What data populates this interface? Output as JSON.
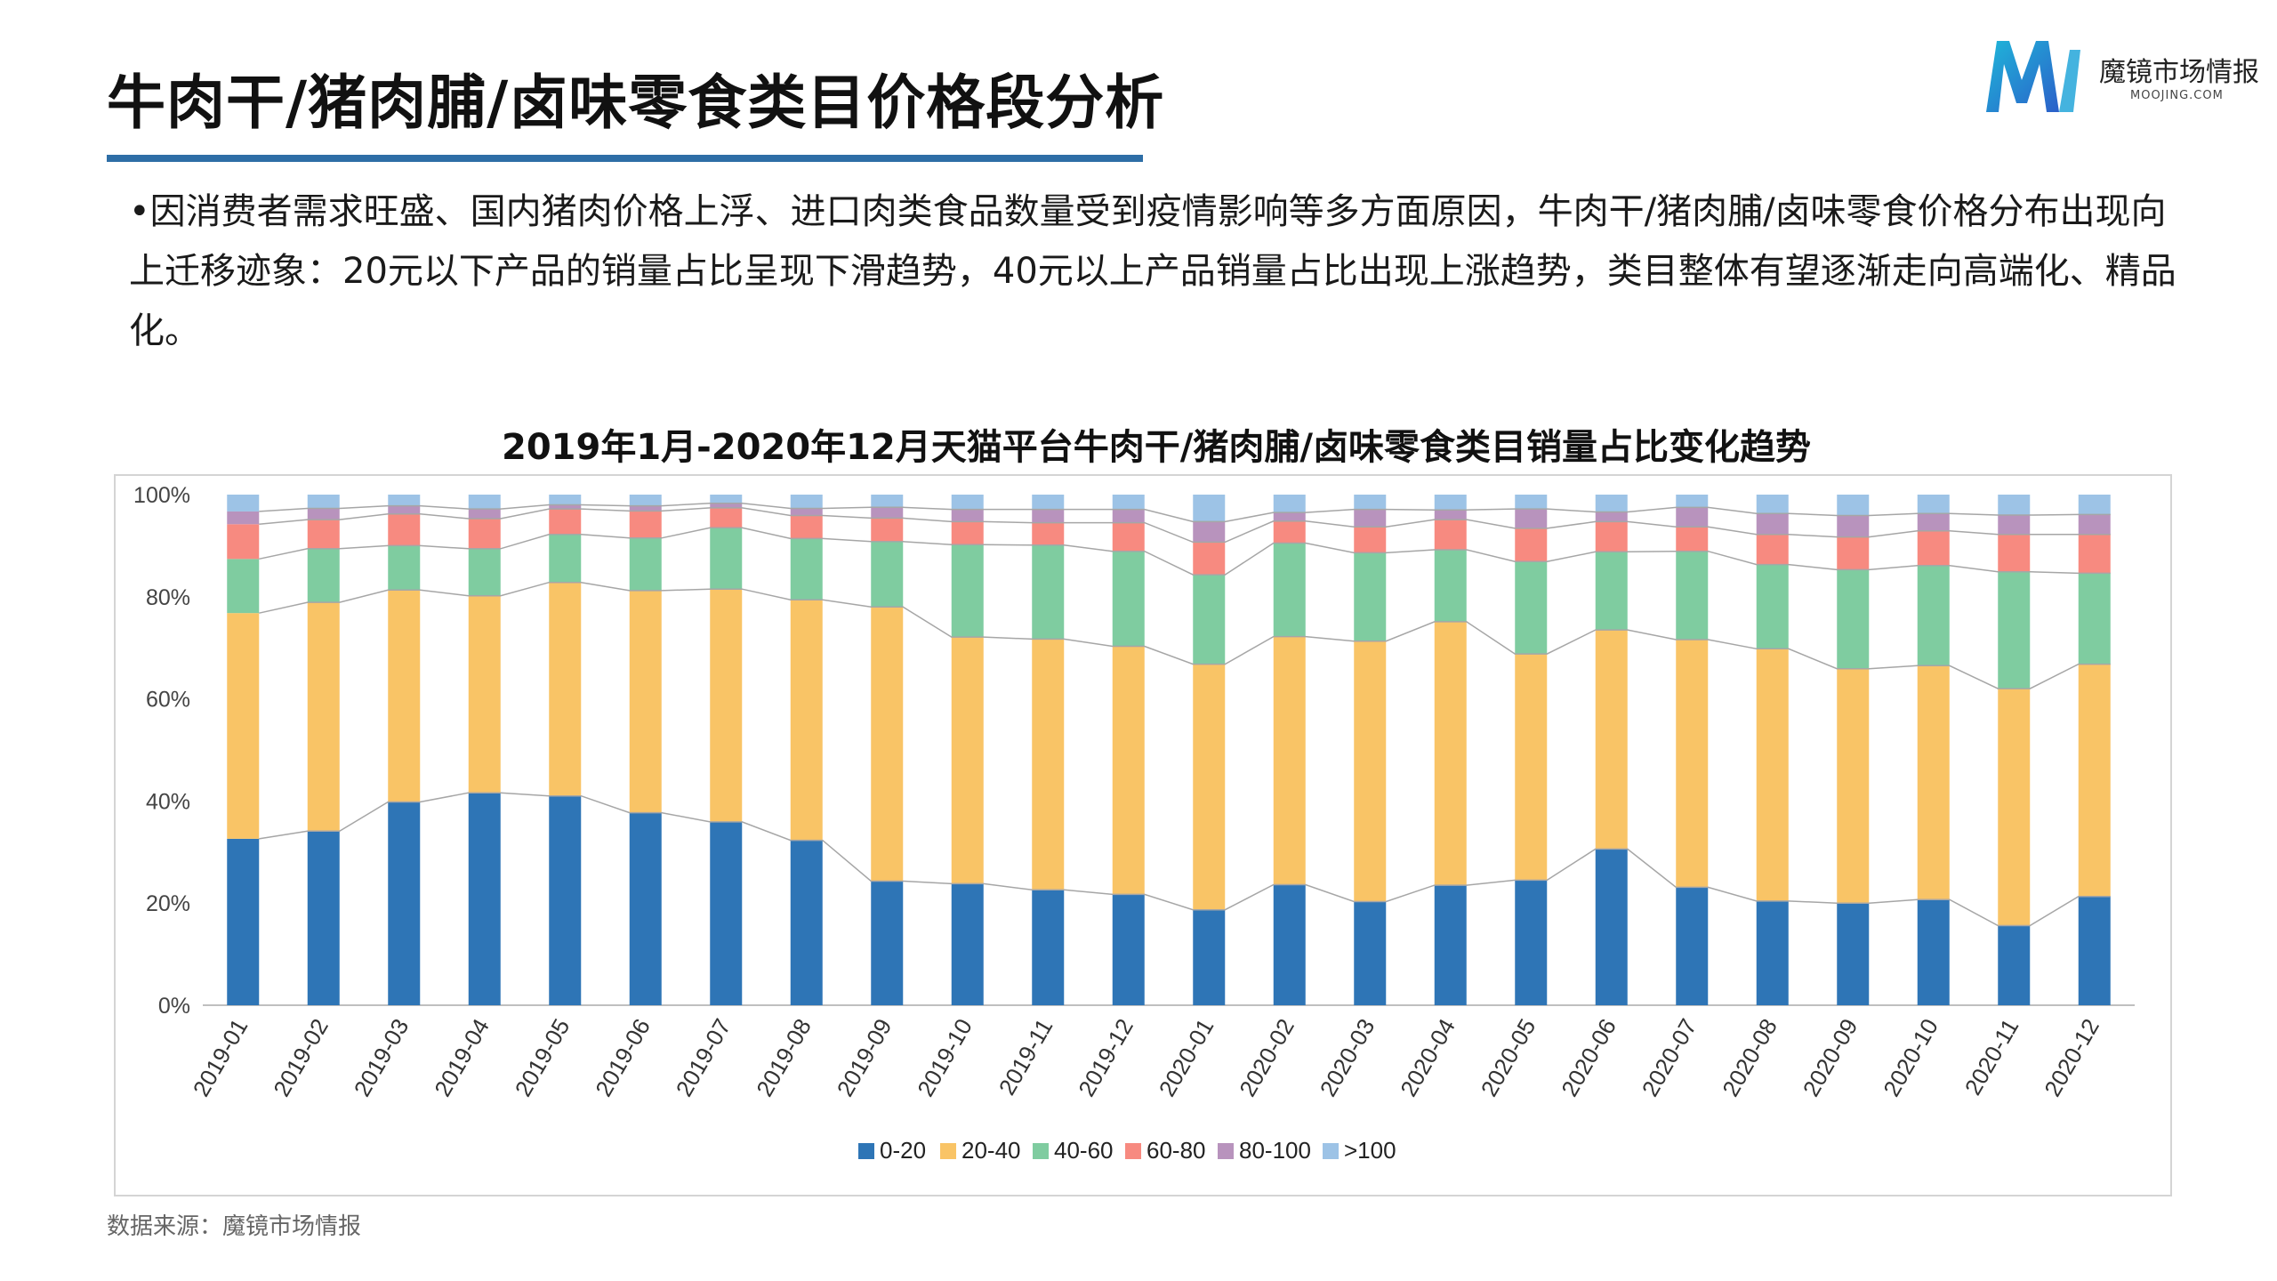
{
  "header": {
    "title": "牛肉干/猪肉脯/卤味零食类目价格段分析",
    "logo_name": "魔镜市场情报",
    "logo_domain": "MOOJING.COM"
  },
  "description": "•因消费者需求旺盛、国内猪肉价格上浮、进口肉类食品数量受到疫情影响等多方面原因，牛肉干/猪肉脯/卤味零食价格分布出现向上迁移迹象：20元以下产品的销量占比呈现下滑趋势，40元以上产品销量占比出现上涨趋势，类目整体有望逐渐走向高端化、精品化。",
  "source": "数据来源：魔镜市场情报",
  "colors": {
    "brand_blue": "#2e6ea6",
    "s_0_20": "#2e75b6",
    "s_20_40": "#f9c466",
    "s_40_60": "#7fcca0",
    "s_60_80": "#f78a80",
    "s_80_100": "#b893bd",
    "s_100_plus": "#9dc3e6"
  },
  "chart_data": {
    "type": "bar",
    "stacked": true,
    "percent_stacked": true,
    "title": "2019年1月-2020年12月天猫平台牛肉干/猪肉脯/卤味零食类目销量占比变化趋势",
    "xlabel": "",
    "ylabel": "",
    "ylim": [
      0,
      100
    ],
    "yticks": [
      "0%",
      "20%",
      "40%",
      "60%",
      "80%",
      "100%"
    ],
    "legend_position": "bottom",
    "grid": false,
    "series_lines": true,
    "categories": [
      "2019-01",
      "2019-02",
      "2019-03",
      "2019-04",
      "2019-05",
      "2019-06",
      "2019-07",
      "2019-08",
      "2019-09",
      "2019-10",
      "2019-11",
      "2019-12",
      "2020-01",
      "2020-02",
      "2020-03",
      "2020-04",
      "2020-05",
      "2020-06",
      "2020-07",
      "2020-08",
      "2020-09",
      "2020-10",
      "2020-11",
      "2020-12"
    ],
    "series": [
      {
        "name": "0-20",
        "values": [
          32.6,
          34.1,
          39.8,
          41.6,
          41.0,
          37.7,
          35.9,
          32.3,
          24.3,
          23.8,
          22.6,
          21.7,
          18.7,
          23.6,
          20.3,
          23.5,
          24.5,
          30.6,
          23.1,
          20.4,
          20.0,
          20.7,
          15.6,
          21.3
        ]
      },
      {
        "name": "20-40",
        "values": [
          44.2,
          44.8,
          41.5,
          38.6,
          41.8,
          43.5,
          45.6,
          47.1,
          53.7,
          48.3,
          49.1,
          48.6,
          48.1,
          48.6,
          51.0,
          51.6,
          44.3,
          42.9,
          48.5,
          49.4,
          45.9,
          45.8,
          46.4,
          45.5
        ]
      },
      {
        "name": "40-60",
        "values": [
          10.6,
          10.5,
          8.7,
          9.2,
          9.4,
          10.3,
          12.0,
          12.0,
          12.8,
          18.1,
          18.4,
          18.6,
          17.5,
          18.3,
          17.3,
          14.1,
          18.1,
          15.3,
          17.3,
          16.5,
          19.4,
          19.6,
          22.9,
          17.8
        ]
      },
      {
        "name": "60-80",
        "values": [
          6.8,
          5.7,
          6.2,
          5.9,
          5.0,
          5.3,
          3.9,
          4.5,
          4.6,
          4.5,
          4.4,
          5.6,
          6.4,
          4.3,
          5.1,
          5.9,
          6.5,
          5.9,
          4.8,
          5.9,
          6.4,
          6.8,
          7.3,
          7.6
        ]
      },
      {
        "name": "80-100",
        "values": [
          2.5,
          2.2,
          1.6,
          1.9,
          0.8,
          1.0,
          0.9,
          1.4,
          2.1,
          2.4,
          2.6,
          2.6,
          4.0,
          1.7,
          3.4,
          1.9,
          3.8,
          1.9,
          3.8,
          4.1,
          4.2,
          3.4,
          3.8,
          3.9
        ]
      },
      {
        "name": ">100",
        "values": [
          3.3,
          2.7,
          2.2,
          2.8,
          2.0,
          2.2,
          1.7,
          2.7,
          2.5,
          2.9,
          2.9,
          2.9,
          5.3,
          3.5,
          2.9,
          3.0,
          2.8,
          3.4,
          2.5,
          3.7,
          4.1,
          3.7,
          4.0,
          3.9
        ]
      }
    ]
  }
}
